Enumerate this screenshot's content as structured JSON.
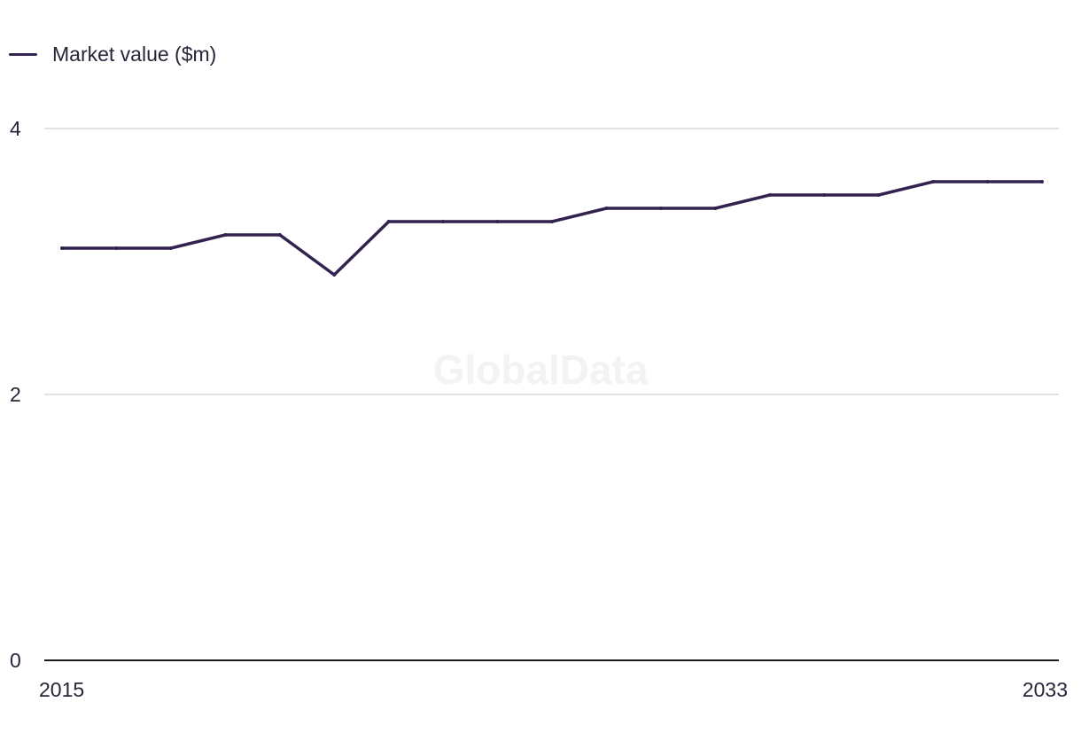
{
  "watermark": "GlobalData",
  "chart_data": {
    "type": "line",
    "title": "",
    "xlabel": "",
    "ylabel": "",
    "x": [
      2015,
      2016,
      2017,
      2018,
      2019,
      2020,
      2021,
      2022,
      2023,
      2024,
      2025,
      2026,
      2027,
      2028,
      2029,
      2030,
      2031,
      2032,
      2033
    ],
    "x_tick_labels": [
      "2015",
      "2033"
    ],
    "y_tick_labels": [
      "0",
      "2",
      "4"
    ],
    "ylim": [
      0,
      4
    ],
    "grid": true,
    "legend_position": "top-left",
    "series": [
      {
        "name": "Market value ($m)",
        "color": "#32224f",
        "values": [
          3.1,
          3.1,
          3.1,
          3.2,
          3.2,
          2.9,
          3.3,
          3.3,
          3.3,
          3.3,
          3.4,
          3.4,
          3.4,
          3.5,
          3.5,
          3.5,
          3.6,
          3.6,
          3.6
        ]
      }
    ]
  }
}
